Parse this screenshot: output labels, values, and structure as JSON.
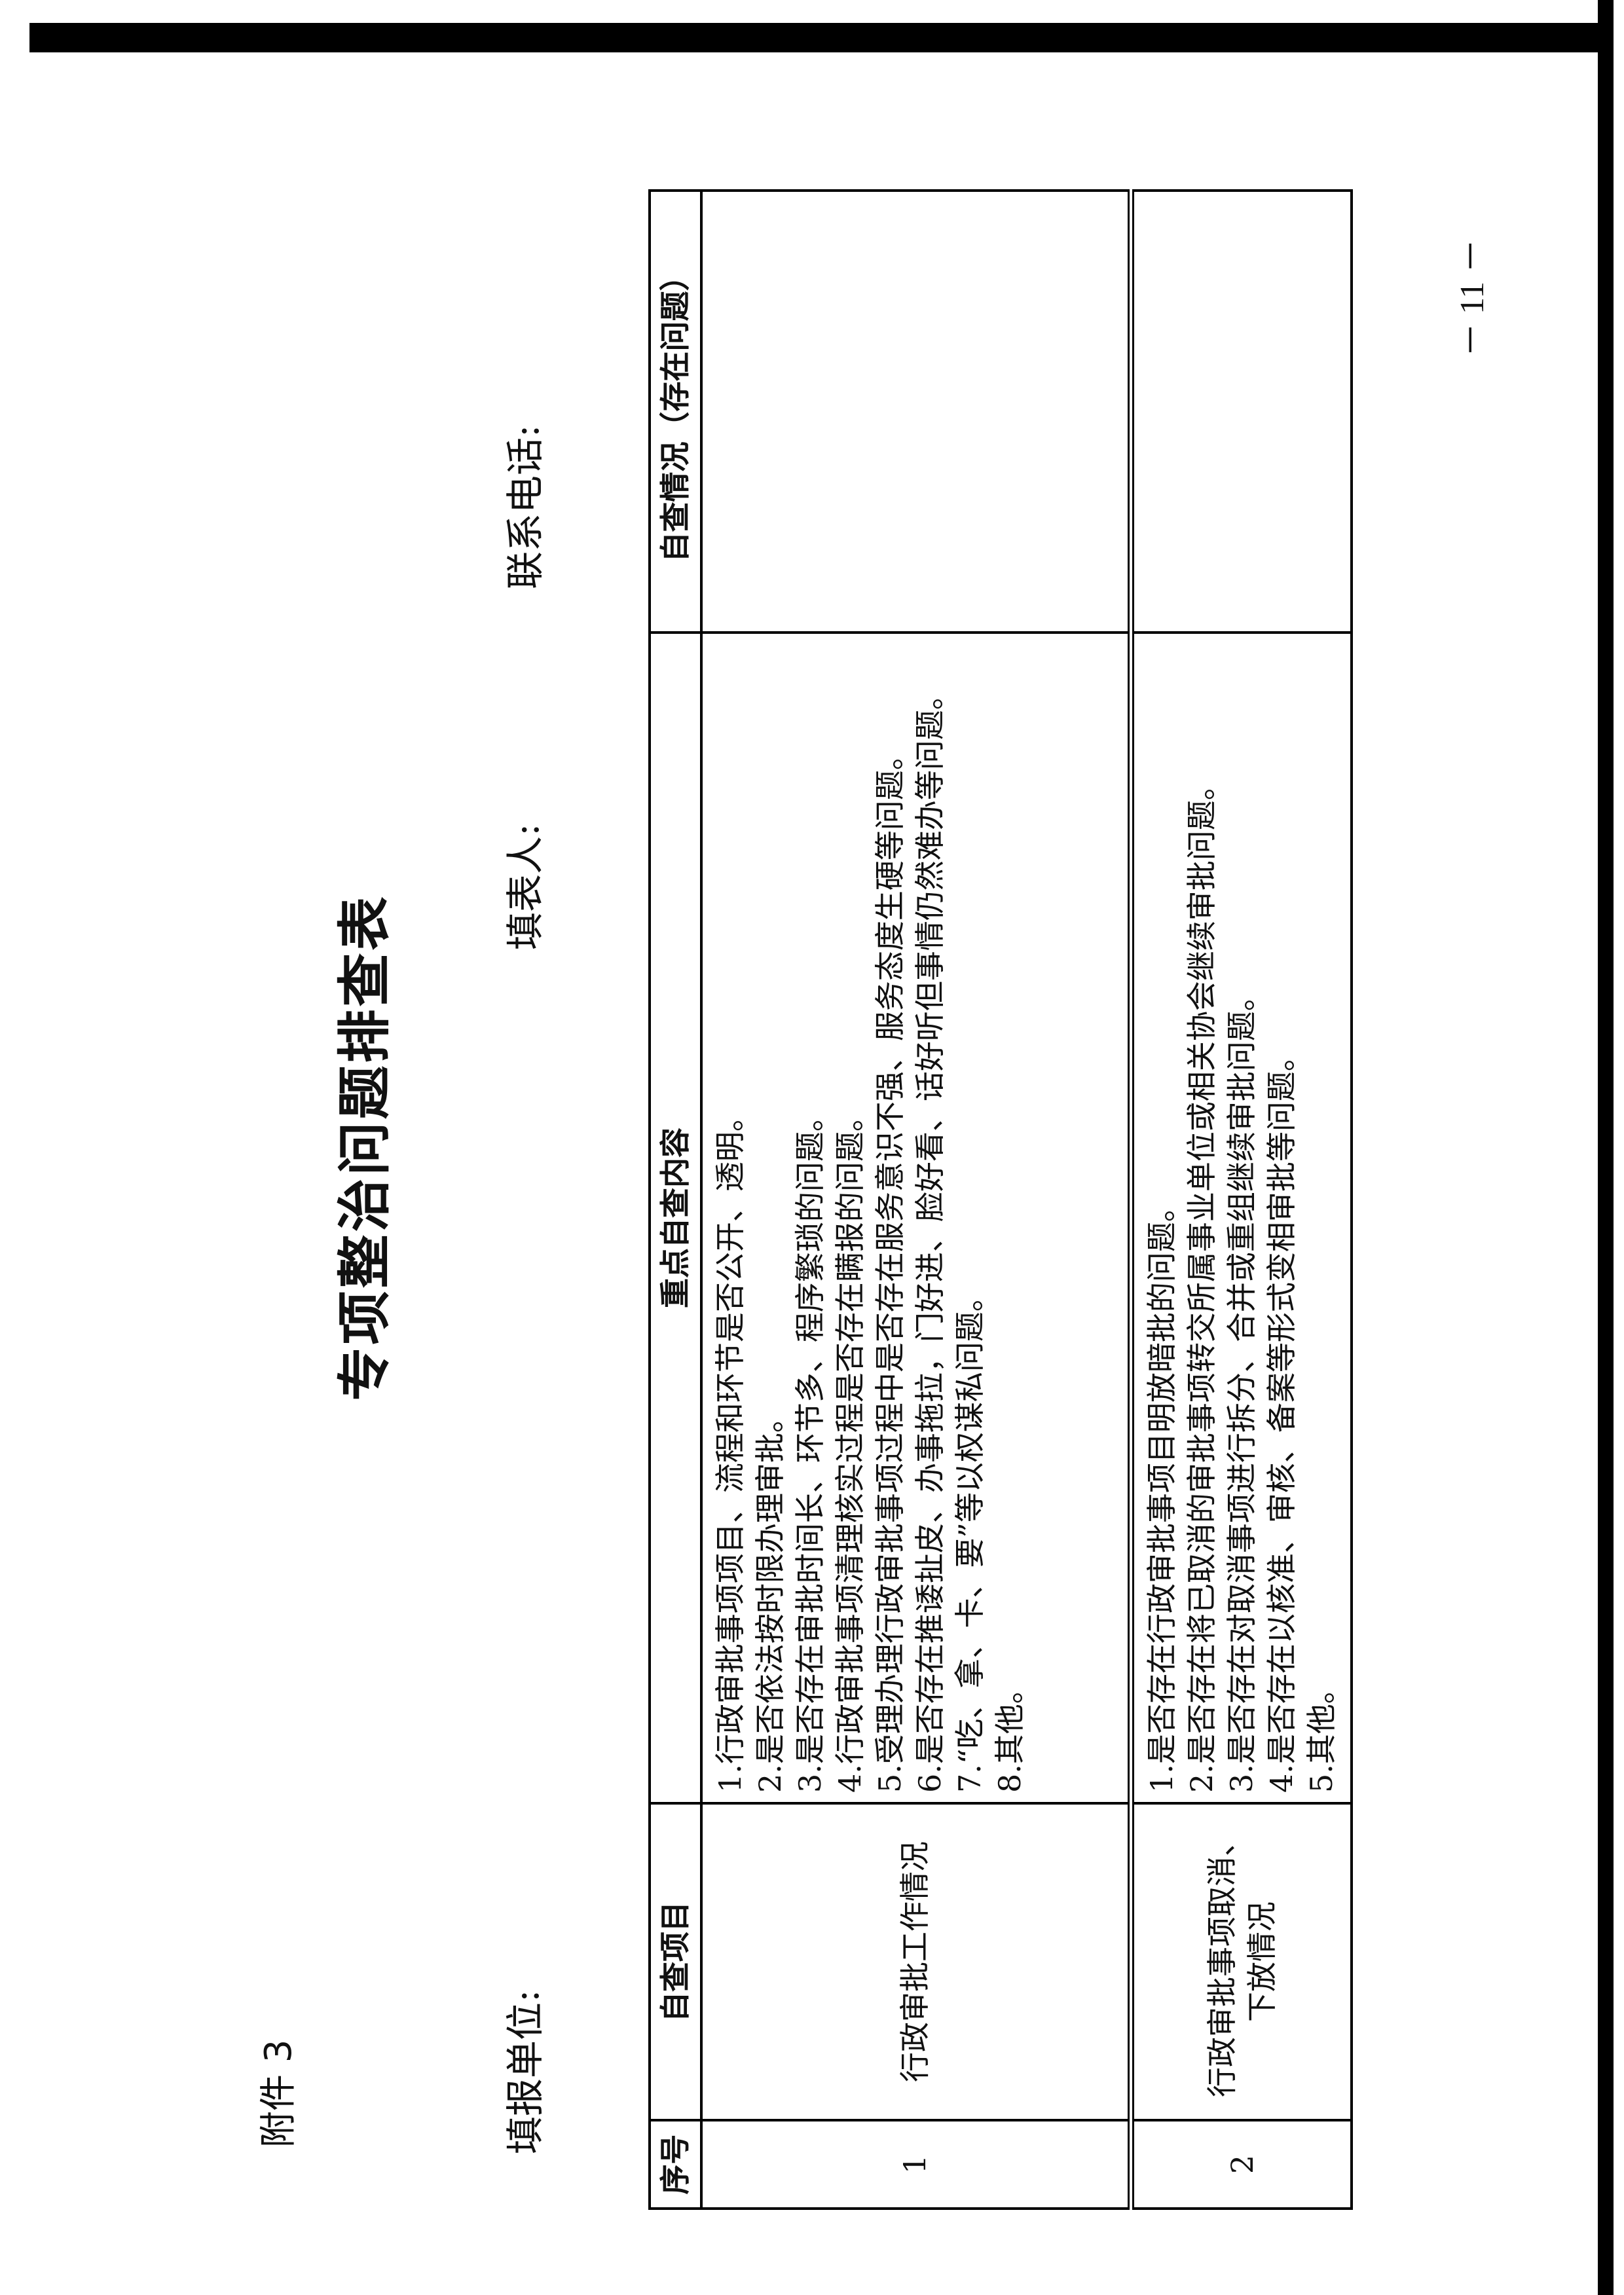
{
  "attachment": "附件 3",
  "title": "专项整治问题排查表",
  "form": {
    "unit_label": "填报单位:",
    "filler_label": "填表人:",
    "phone_label": "联系电话:"
  },
  "table": {
    "headers": [
      "序号",
      "自查项目",
      "重点自查内容",
      "自查情况（存在问题）"
    ],
    "rows": [
      {
        "no": "1",
        "item": "行政审批工作情况",
        "content": [
          "1.行政审批事项项目、流程和环节是否公开、透明。",
          "2.是否依法按时限办理审批。",
          "3.是否存在审批时间长、环节多、程序繁琐的问题。",
          "4.行政审批事项清理核实过程是否存在瞒报的问题。",
          "5.受理办理行政审批事项过程中是否存在服务意识不强、服务态度生硬等问题。",
          "6.是否存在推诿扯皮、办事拖拉，门好进、脸好看、话好听但事情仍然难办等问题。",
          "7.“吃、拿、卡、要”等以权谋私问题。",
          "8.其他。"
        ],
        "status": ""
      },
      {
        "no": "2",
        "item": "行政审批事项取消、下放情况",
        "content": [
          "1.是否存在行政审批事项目明放暗批的问题。",
          "2.是否存在将已取消的审批事项转交所属事业单位或相关协会继续审批问题。",
          "3.是否存在对取消事项进行拆分、合并或重组继续审批问题。",
          "4.是否存在以核准、审核、备案等形式变相审批等问题。",
          "5.其他。"
        ],
        "status": ""
      }
    ]
  },
  "page_number": "－ 11 －"
}
